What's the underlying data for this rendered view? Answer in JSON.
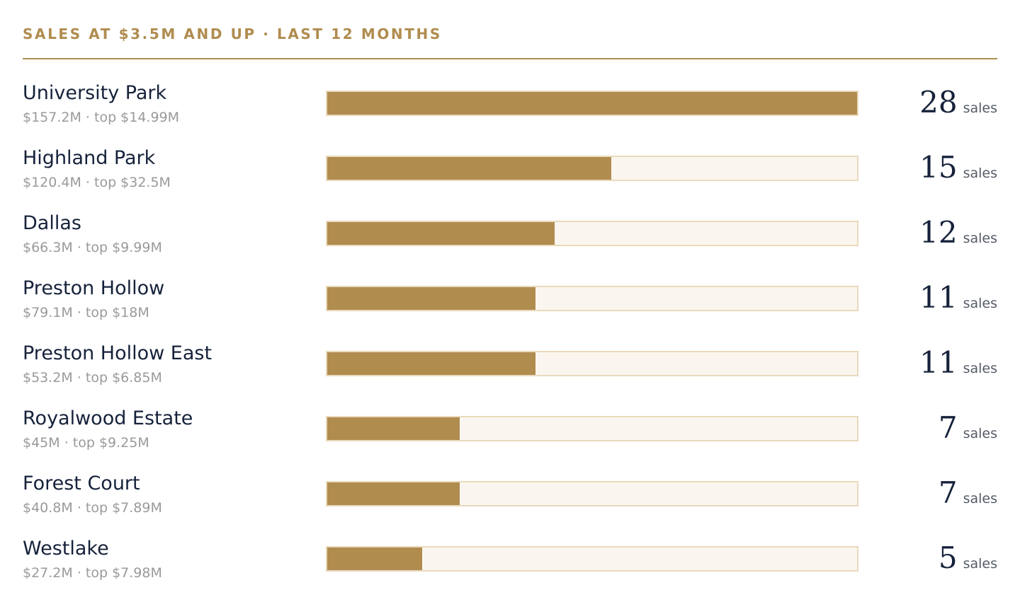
{
  "header": {
    "title": "SALES AT $3.5M AND UP · LAST 12 MONTHS"
  },
  "colors": {
    "accent": "#b08c4f",
    "track": "#faf6ef",
    "track_border": "#ead9bc",
    "name_text": "#16223b",
    "meta_text": "#9a9a9a"
  },
  "chart_data": {
    "type": "bar",
    "orientation": "horizontal",
    "title": "SALES AT $3.5M AND UP · LAST 12 MONTHS",
    "unit_label": "sales",
    "xlim": [
      0,
      28
    ],
    "categories": [
      "University Park",
      "Highland Park",
      "Dallas",
      "Preston Hollow",
      "Preston Hollow East",
      "Royalwood Estate",
      "Forest Court",
      "Westlake"
    ],
    "values": [
      28,
      15,
      12,
      11,
      11,
      7,
      7,
      5
    ],
    "rows": [
      {
        "name": "University Park",
        "meta": "$157.2M · top $14.99M",
        "count": "28",
        "unit": "sales",
        "value": 28
      },
      {
        "name": "Highland Park",
        "meta": "$120.4M · top $32.5M",
        "count": "15",
        "unit": "sales",
        "value": 15
      },
      {
        "name": "Dallas",
        "meta": "$66.3M · top $9.99M",
        "count": "12",
        "unit": "sales",
        "value": 12
      },
      {
        "name": "Preston Hollow",
        "meta": "$79.1M · top $18M",
        "count": "11",
        "unit": "sales",
        "value": 11
      },
      {
        "name": "Preston Hollow East",
        "meta": "$53.2M · top $6.85M",
        "count": "11",
        "unit": "sales",
        "value": 11
      },
      {
        "name": "Royalwood Estate",
        "meta": "$45M · top $9.25M",
        "count": "7",
        "unit": "sales",
        "value": 7
      },
      {
        "name": "Forest Court",
        "meta": "$40.8M · top $7.89M",
        "count": "7",
        "unit": "sales",
        "value": 7
      },
      {
        "name": "Westlake",
        "meta": "$27.2M · top $7.98M",
        "count": "5",
        "unit": "sales",
        "value": 5
      }
    ]
  }
}
